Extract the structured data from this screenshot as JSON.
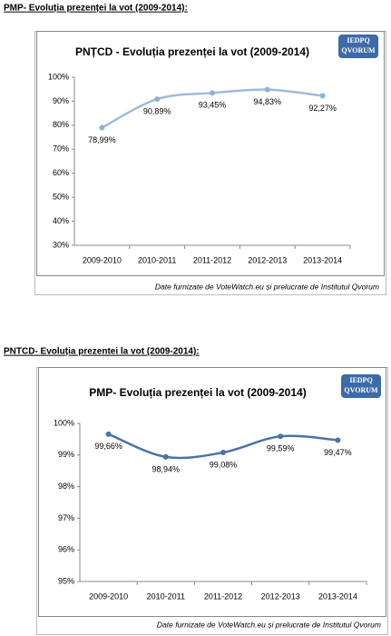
{
  "headings": [
    "PMP- Evoluția prezenței la vot (2009-2014):",
    "PNTCD- Evoluția prezentei la vot (2009-2014):"
  ],
  "chart_data": [
    {
      "type": "line",
      "title": "PNȚCD - Evoluția prezenței la vot (2009-2014)",
      "logo": [
        "IEDPQ",
        "QVORUM"
      ],
      "categories": [
        "2009-2010",
        "2010-2011",
        "2011-2012",
        "2012-2013",
        "2013-2014"
      ],
      "values": [
        78.99,
        90.89,
        93.45,
        94.83,
        92.27
      ],
      "value_labels": [
        "78,99%",
        "90,89%",
        "93,45%",
        "94,83%",
        "92,27%"
      ],
      "color": "#9dbbda",
      "marker_color": "#8eb0d6",
      "ylim": [
        30,
        100
      ],
      "yticks": [
        {
          "value": 30,
          "label": "30%"
        },
        {
          "value": 40,
          "label": "40%"
        },
        {
          "value": 50,
          "label": "50%"
        },
        {
          "value": 60,
          "label": "60%"
        },
        {
          "value": 70,
          "label": "70%"
        },
        {
          "value": 80,
          "label": "80%"
        },
        {
          "value": 90,
          "label": "90%"
        },
        {
          "value": 100,
          "label": "100%"
        }
      ],
      "grid": false,
      "source": "Date furnizate de VoteWatch.eu și prelucrate de Institutul Qvorum"
    },
    {
      "type": "line",
      "title": "PMP- Evoluția prezenței la vot (2009-2014)",
      "logo": [
        "IEDPQ",
        "QVORUM"
      ],
      "categories": [
        "2009-2010",
        "2010-2011",
        "2011-2012",
        "2012-2013",
        "2013-2014"
      ],
      "values": [
        99.66,
        98.94,
        99.08,
        99.59,
        99.47
      ],
      "value_labels": [
        "99,66%",
        "98,94%",
        "99,08%",
        "99,59%",
        "99,47%"
      ],
      "color": "#4a73a9",
      "marker_color": "#4a73a9",
      "ylim": [
        95,
        100
      ],
      "yticks": [
        {
          "value": 95,
          "label": "95%"
        },
        {
          "value": 96,
          "label": "96%"
        },
        {
          "value": 97,
          "label": "97%"
        },
        {
          "value": 98,
          "label": "98%"
        },
        {
          "value": 99,
          "label": "99%"
        },
        {
          "value": 100,
          "label": "100%"
        }
      ],
      "grid": false,
      "source": "Date furnizate de VoteWatch.eu și prelucrate de Institutul Qvorum"
    }
  ]
}
